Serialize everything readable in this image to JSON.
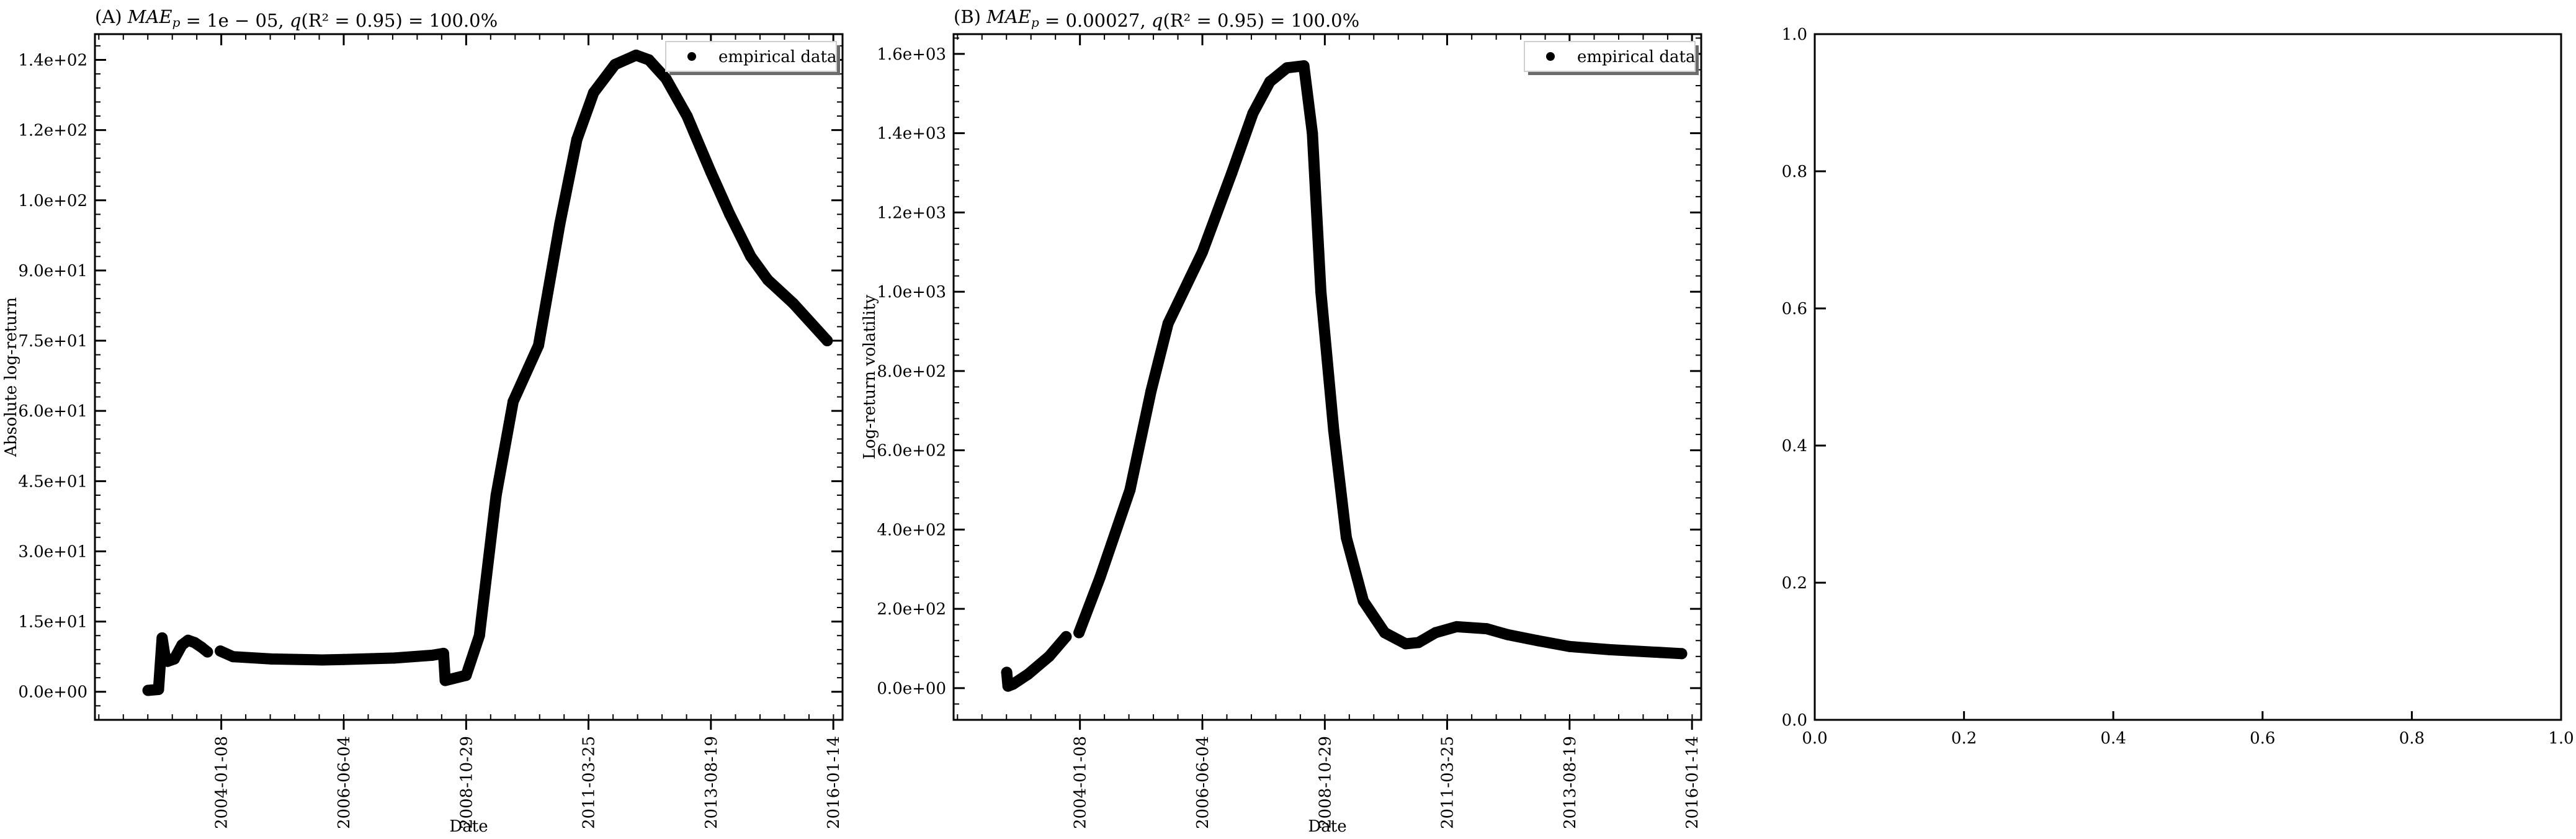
{
  "chart_data": [
    {
      "type": "scatter",
      "title": "(A) $MAE_p$ = 1e − 05, $q(R^2 = 0.95)$ = 100.0%",
      "title_parts": {
        "prefix": "(A) ",
        "mae_label": "MAE",
        "mae_sub": "p",
        "mae_value": " = 1e − 05, ",
        "q_label": "q",
        "q_value": "(R² = 0.95) = 100.0%"
      },
      "xlabel": "Date",
      "ylabel": "Absolute log-return",
      "x_ticks": [
        "2004-01-08",
        "2006-06-04",
        "2008-10-29",
        "2011-03-25",
        "2013-08-19",
        "2016-01-14"
      ],
      "xlim": [
        "2001-07-16",
        "2016-03-20"
      ],
      "y_ticks": [
        "0.0e+00",
        "1.5e+01",
        "3.0e+01",
        "4.5e+01",
        "6.0e+01",
        "7.5e+01",
        "9.0e+01",
        "1.0e+02",
        "1.2e+02",
        "1.4e+02"
      ],
      "y_tick_values": [
        0,
        15,
        30,
        45,
        60,
        75,
        90,
        105,
        120,
        135
      ],
      "ylim": [
        -6,
        140.5
      ],
      "grid": false,
      "legend": {
        "entries": [
          "empirical data"
        ],
        "placement": "top-right"
      },
      "series": [
        {
          "name": "empirical data",
          "segments": [
            [
              [
                "2002-08-01",
                0.3
              ],
              [
                "2002-10-15",
                0.5
              ],
              [
                "2002-11-10",
                11.5
              ],
              [
                "2002-11-28",
                8
              ],
              [
                "2002-12-20",
                6.5
              ],
              [
                "2003-02-05",
                7
              ],
              [
                "2003-04-01",
                10
              ],
              [
                "2003-05-15",
                11
              ],
              [
                "2003-07-01",
                10.5
              ],
              [
                "2003-08-20",
                9.5
              ],
              [
                "2003-10-01",
                8.5
              ]
            ],
            [
              [
                "2004-01-01",
                8.7
              ],
              [
                "2004-04-01",
                7.5
              ],
              [
                "2005-01-01",
                7
              ],
              [
                "2006-01-01",
                6.8
              ],
              [
                "2006-06-04",
                6.9
              ],
              [
                "2007-06-01",
                7.2
              ],
              [
                "2008-03-01",
                7.8
              ],
              [
                "2008-05-20",
                8.2
              ],
              [
                "2008-06-01",
                2.4
              ],
              [
                "2008-10-29",
                3.5
              ],
              [
                "2009-02-01",
                12
              ],
              [
                "2009-06-01",
                42
              ],
              [
                "2009-10-01",
                62
              ],
              [
                "2010-04-01",
                74
              ],
              [
                "2010-09-01",
                100
              ],
              [
                "2011-01-01",
                118
              ],
              [
                "2011-05-01",
                128
              ],
              [
                "2011-10-01",
                134
              ],
              [
                "2012-03-01",
                136
              ],
              [
                "2012-06-01",
                135
              ],
              [
                "2012-10-01",
                131
              ],
              [
                "2013-03-01",
                123
              ],
              [
                "2013-08-19",
                111
              ],
              [
                "2014-01-01",
                102
              ],
              [
                "2014-06-01",
                93
              ],
              [
                "2014-10-01",
                88
              ],
              [
                "2015-04-01",
                83
              ],
              [
                "2015-12-01",
                75
              ]
            ]
          ]
        }
      ]
    },
    {
      "type": "scatter",
      "title": "(B) $MAE_p$ = 0.00027, $q(R^2 = 0.95)$ = 100.0%",
      "title_parts": {
        "prefix": "(B) ",
        "mae_label": "MAE",
        "mae_sub": "p",
        "mae_value": " = 0.00027, ",
        "q_label": "q",
        "q_value": "(R² = 0.95) = 100.0%"
      },
      "xlabel": "Date",
      "ylabel": "Log-return volatility",
      "x_ticks": [
        "2004-01-08",
        "2006-06-04",
        "2008-10-29",
        "2011-03-25",
        "2013-08-19",
        "2016-01-14"
      ],
      "xlim": [
        "2001-07-16",
        "2016-03-20"
      ],
      "y_ticks": [
        "0.0e+00",
        "2.0e+02",
        "4.0e+02",
        "6.0e+02",
        "8.0e+02",
        "1.0e+03",
        "1.2e+03",
        "1.4e+03",
        "1.6e+03"
      ],
      "y_tick_values": [
        0,
        200,
        400,
        600,
        800,
        1000,
        1200,
        1400,
        1600
      ],
      "ylim": [
        -80,
        1650
      ],
      "grid": false,
      "legend": {
        "entries": [
          "empirical data"
        ],
        "placement": "top-right"
      },
      "series": [
        {
          "name": "empirical data",
          "segments": [
            [
              [
                "2002-08-01",
                40
              ],
              [
                "2002-08-10",
                5
              ],
              [
                "2002-09-15",
                10
              ],
              [
                "2003-01-01",
                35
              ],
              [
                "2003-06-01",
                80
              ],
              [
                "2003-10-01",
                130
              ]
            ],
            [
              [
                "2004-01-01",
                140
              ],
              [
                "2004-06-01",
                280
              ],
              [
                "2005-01-01",
                500
              ],
              [
                "2005-06-01",
                750
              ],
              [
                "2005-10-01",
                920
              ],
              [
                "2006-06-04",
                1100
              ],
              [
                "2007-01-01",
                1300
              ],
              [
                "2007-06-01",
                1450
              ],
              [
                "2007-10-01",
                1530
              ],
              [
                "2008-02-01",
                1565
              ],
              [
                "2008-06-01",
                1570
              ],
              [
                "2008-08-01",
                1400
              ],
              [
                "2008-10-01",
                1000
              ],
              [
                "2009-01-01",
                650
              ],
              [
                "2009-04-01",
                380
              ],
              [
                "2009-08-01",
                220
              ],
              [
                "2010-01-01",
                140
              ],
              [
                "2010-06-01",
                112
              ],
              [
                "2010-09-01",
                115
              ],
              [
                "2011-01-01",
                140
              ],
              [
                "2011-06-01",
                155
              ],
              [
                "2012-01-01",
                150
              ],
              [
                "2012-06-01",
                135
              ],
              [
                "2013-01-01",
                120
              ],
              [
                "2013-08-19",
                105
              ],
              [
                "2014-06-01",
                97
              ],
              [
                "2015-06-01",
                90
              ],
              [
                "2015-11-01",
                87
              ]
            ]
          ]
        }
      ]
    },
    {
      "type": "scatter",
      "title": "",
      "xlabel": "",
      "ylabel": "",
      "x_ticks": [
        "0.0",
        "0.2",
        "0.4",
        "0.6",
        "0.8",
        "1.0"
      ],
      "x_tick_values": [
        0,
        0.2,
        0.4,
        0.6,
        0.8,
        1.0
      ],
      "y_ticks": [
        "0.0",
        "0.2",
        "0.4",
        "0.6",
        "0.8",
        "1.0"
      ],
      "y_tick_values": [
        0,
        0.2,
        0.4,
        0.6,
        0.8,
        1.0
      ],
      "xlim": [
        0,
        1
      ],
      "ylim": [
        0,
        1
      ],
      "grid": false,
      "series": []
    }
  ]
}
